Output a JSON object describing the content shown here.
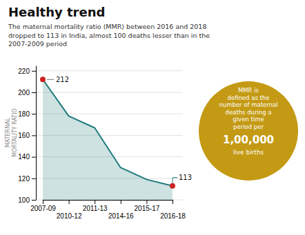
{
  "chart_data": {
    "type": "line",
    "title": "Healthy trend",
    "subtitle": "The maternal mortality ratio (MMR) between 2016 and 2018\ndropped to 113 in India, almost 100 deaths lesser than in the\n2007-2009 period",
    "y_label": "MATERNAL\nMORTALITY RATIO",
    "categories": [
      "2007-09",
      "2010-12",
      "2011-13",
      "2014-16",
      "2015-17",
      "2016-18"
    ],
    "values": [
      212,
      178,
      167,
      130,
      119,
      113
    ],
    "color": "#207a7a",
    "ylim": [
      100,
      225
    ],
    "yticks": [
      100,
      120,
      140,
      160,
      180,
      200,
      220
    ],
    "grid": true,
    "annotations": [
      {
        "x": "2007-09",
        "y": 212,
        "text": "212",
        "color": "#cc2222"
      },
      {
        "x": "2016-18",
        "y": 113,
        "text": "113",
        "color": "#cc2222"
      }
    ],
    "callout": {
      "text": [
        "MMR is\ndefined as the\nnumber of maternal\ndeaths during a\ngiven time\nperiod per",
        "1,00,000",
        "live births"
      ],
      "color": "#c49a14"
    }
  }
}
